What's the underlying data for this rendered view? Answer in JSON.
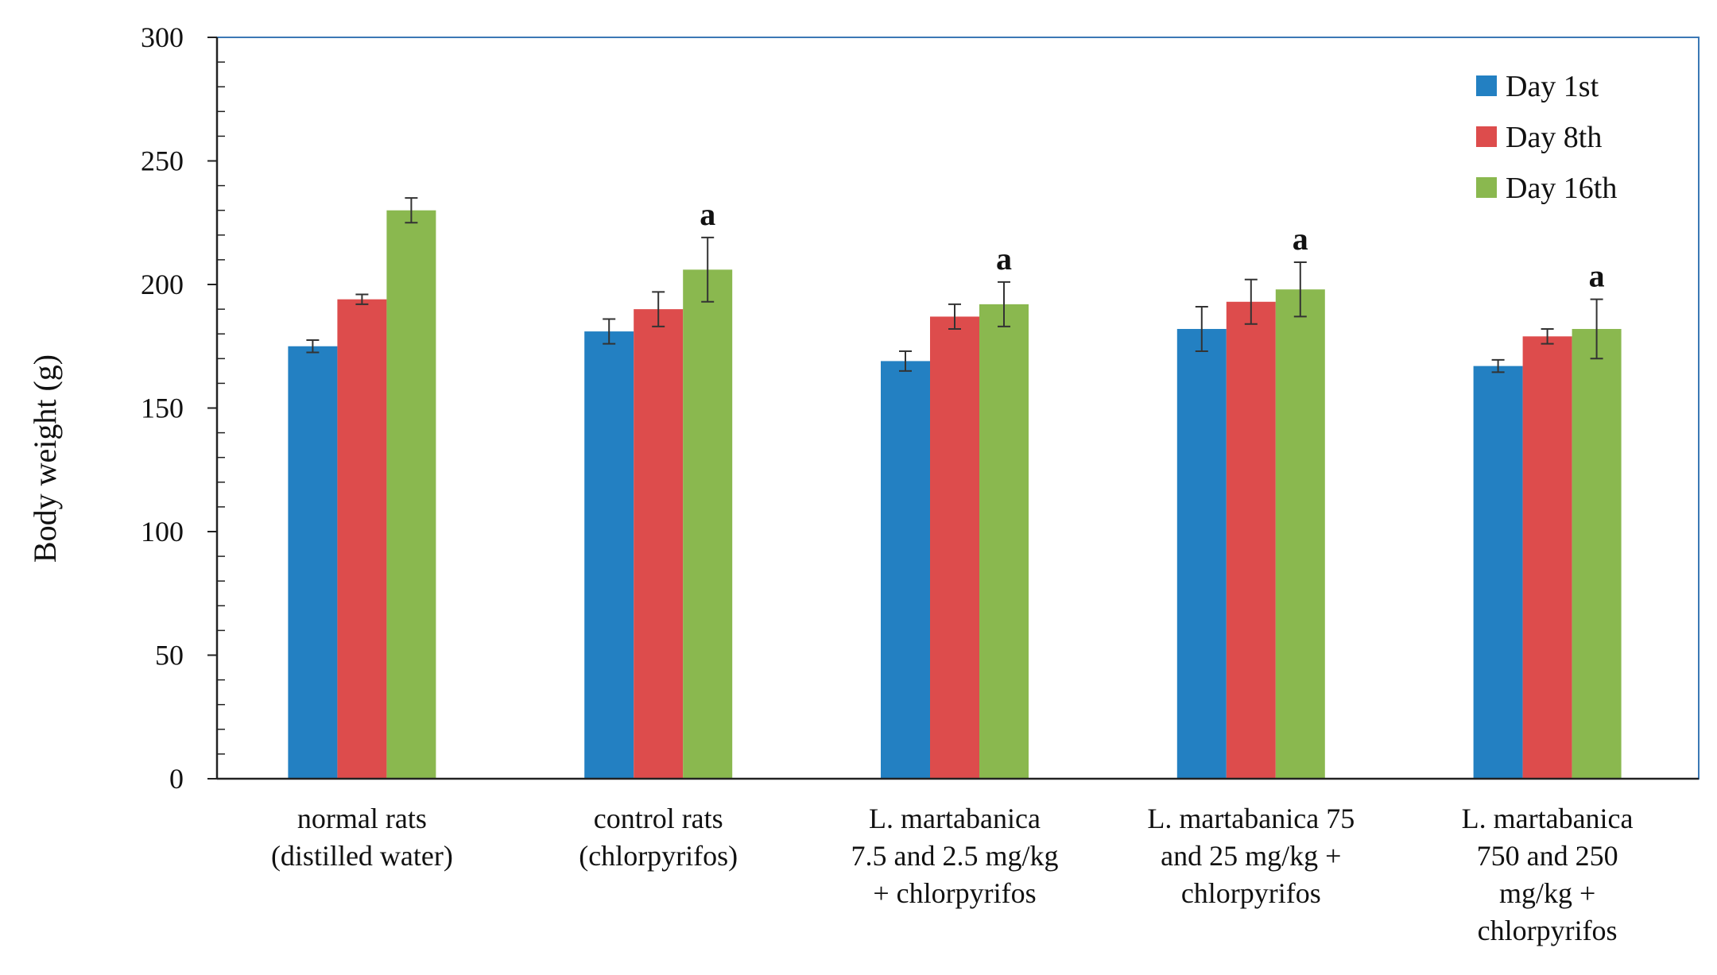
{
  "chart_data": {
    "type": "bar",
    "title": "",
    "xlabel": "",
    "ylabel": "Body weight (g)",
    "ylim": [
      0,
      300
    ],
    "yticks": [
      0,
      50,
      100,
      150,
      200,
      250,
      300
    ],
    "grid": false,
    "legend_position": "top-right",
    "categories": [
      [
        "normal rats",
        "(distilled water)"
      ],
      [
        "control rats",
        "(chlorpyrifos)"
      ],
      [
        "L. martabanica",
        "7.5 and 2.5 mg/kg",
        "+ chlorpyrifos"
      ],
      [
        "L. martabanica 75",
        "and 25 mg/kg +",
        "chlorpyrifos"
      ],
      [
        "L. martabanica",
        "750 and 250",
        "mg/kg +",
        "chlorpyrifos"
      ]
    ],
    "series": [
      {
        "name": "Day 1st",
        "color": "#2380c2",
        "values": [
          175,
          181,
          169,
          182,
          167
        ],
        "errors": [
          2.5,
          5,
          4,
          9,
          2.5
        ]
      },
      {
        "name": "Day 8th",
        "color": "#dd4c4c",
        "values": [
          194,
          190,
          187,
          193,
          179
        ],
        "errors": [
          2,
          7,
          5,
          9,
          3
        ]
      },
      {
        "name": "Day 16th",
        "color": "#8ab84f",
        "values": [
          230,
          206,
          192,
          198,
          182
        ],
        "errors": [
          5,
          13,
          9,
          11,
          12
        ]
      }
    ],
    "annotations": [
      {
        "category_index": 1,
        "series_index": 2,
        "text": "a"
      },
      {
        "category_index": 2,
        "series_index": 2,
        "text": "a"
      },
      {
        "category_index": 3,
        "series_index": 2,
        "text": "a"
      },
      {
        "category_index": 4,
        "series_index": 2,
        "text": "a"
      }
    ]
  }
}
